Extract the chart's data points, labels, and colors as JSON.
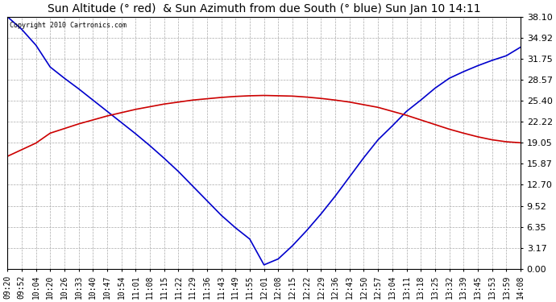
{
  "title": "Sun Altitude (° red)  & Sun Azimuth from due South (° blue) Sun Jan 10 14:11",
  "copyright_text": "Copyright 2010 Cartronics.com",
  "yticks": [
    0.0,
    3.17,
    6.35,
    9.52,
    12.7,
    15.87,
    19.05,
    22.22,
    25.4,
    28.57,
    31.75,
    34.92,
    38.1
  ],
  "ymin": 0.0,
  "ymax": 38.1,
  "xtick_labels": [
    "09:20",
    "09:52",
    "10:04",
    "10:20",
    "10:26",
    "10:33",
    "10:40",
    "10:47",
    "10:54",
    "11:01",
    "11:08",
    "11:15",
    "11:22",
    "11:29",
    "11:36",
    "11:43",
    "11:49",
    "11:55",
    "12:01",
    "12:08",
    "12:15",
    "12:22",
    "12:29",
    "12:36",
    "12:43",
    "12:50",
    "12:57",
    "13:04",
    "13:11",
    "13:18",
    "13:25",
    "13:32",
    "13:39",
    "13:45",
    "13:53",
    "13:59",
    "14:08"
  ],
  "blue_y": [
    38.1,
    36.2,
    33.8,
    30.5,
    28.8,
    27.2,
    25.5,
    23.8,
    22.1,
    20.4,
    18.6,
    16.7,
    14.7,
    12.5,
    10.3,
    8.1,
    6.2,
    4.5,
    0.6,
    1.5,
    3.5,
    5.8,
    8.3,
    11.0,
    13.9,
    16.8,
    19.5,
    21.6,
    23.8,
    25.5,
    27.3,
    28.8,
    29.8,
    30.7,
    31.5,
    32.2,
    33.5
  ],
  "red_y": [
    17.0,
    18.0,
    19.0,
    20.5,
    21.2,
    21.9,
    22.5,
    23.1,
    23.6,
    24.1,
    24.5,
    24.9,
    25.2,
    25.5,
    25.7,
    25.9,
    26.05,
    26.15,
    26.2,
    26.15,
    26.1,
    25.95,
    25.75,
    25.5,
    25.2,
    24.8,
    24.4,
    23.8,
    23.2,
    22.5,
    21.8,
    21.1,
    20.5,
    19.95,
    19.5,
    19.2,
    19.05
  ],
  "blue_color": "#0000cc",
  "red_color": "#cc0000",
  "bg_color": "#ffffff",
  "grid_color": "#aaaaaa",
  "title_fontsize": 10,
  "ytick_fontsize": 8,
  "xtick_fontsize": 7
}
